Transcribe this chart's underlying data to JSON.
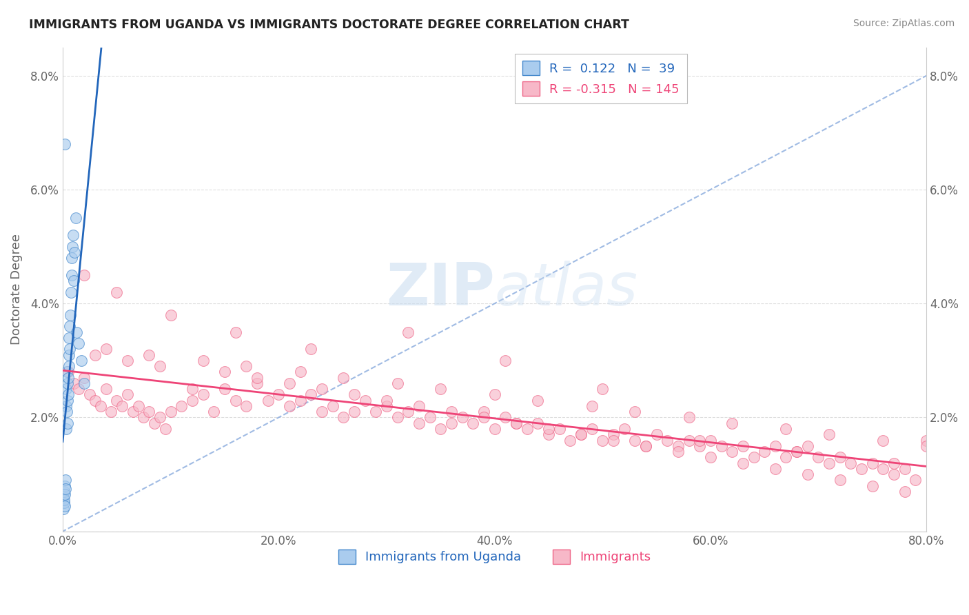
{
  "title": "IMMIGRANTS FROM UGANDA VS IMMIGRANTS DOCTORATE DEGREE CORRELATION CHART",
  "source": "Source: ZipAtlas.com",
  "ylabel_label": "Doctorate Degree",
  "x_tick_labels": [
    "0.0%",
    "20.0%",
    "40.0%",
    "60.0%",
    "80.0%"
  ],
  "x_tick_values": [
    0.0,
    20.0,
    40.0,
    60.0,
    80.0
  ],
  "y_tick_labels": [
    "",
    "2.0%",
    "4.0%",
    "6.0%",
    "8.0%"
  ],
  "y_tick_values": [
    0.0,
    2.0,
    4.0,
    6.0,
    8.0
  ],
  "xlim": [
    0.0,
    80.0
  ],
  "ylim": [
    0.0,
    8.5
  ],
  "R_blue": 0.122,
  "N_blue": 39,
  "R_pink": -0.315,
  "N_pink": 145,
  "legend_label_blue": "Immigrants from Uganda",
  "legend_label_pink": "Immigrants",
  "blue_fill_color": "#aaccee",
  "pink_fill_color": "#f7b8c8",
  "blue_edge_color": "#4488cc",
  "pink_edge_color": "#ee6688",
  "blue_line_color": "#2266bb",
  "pink_line_color": "#ee4477",
  "diag_line_color": "#88aadd",
  "watermark_color": "#ccddf0",
  "title_color": "#222222",
  "source_color": "#888888",
  "axis_color": "#666666",
  "grid_color": "#dddddd",
  "blue_scatter_x": [
    0.05,
    0.08,
    0.1,
    0.12,
    0.15,
    0.18,
    0.2,
    0.22,
    0.25,
    0.28,
    0.3,
    0.32,
    0.35,
    0.38,
    0.4,
    0.42,
    0.45,
    0.48,
    0.5,
    0.52,
    0.55,
    0.58,
    0.6,
    0.62,
    0.65,
    0.7,
    0.75,
    0.8,
    0.85,
    0.9,
    0.95,
    1.0,
    1.1,
    1.2,
    1.3,
    1.5,
    1.7,
    2.0,
    0.18
  ],
  "blue_scatter_y": [
    0.4,
    0.6,
    0.5,
    0.7,
    0.55,
    0.45,
    0.8,
    0.65,
    0.9,
    0.75,
    1.8,
    2.2,
    2.5,
    2.8,
    2.1,
    1.9,
    2.6,
    2.3,
    2.7,
    2.4,
    3.1,
    3.4,
    2.9,
    3.2,
    3.6,
    3.8,
    4.2,
    4.5,
    4.8,
    5.0,
    5.2,
    4.4,
    4.9,
    5.5,
    3.5,
    3.3,
    3.0,
    2.6,
    6.8
  ],
  "pink_scatter_x": [
    0.5,
    1.0,
    1.5,
    2.0,
    2.5,
    3.0,
    3.5,
    4.0,
    4.5,
    5.0,
    5.5,
    6.0,
    6.5,
    7.0,
    7.5,
    8.0,
    8.5,
    9.0,
    9.5,
    10.0,
    11.0,
    12.0,
    13.0,
    14.0,
    15.0,
    16.0,
    17.0,
    18.0,
    19.0,
    20.0,
    21.0,
    22.0,
    23.0,
    24.0,
    25.0,
    26.0,
    27.0,
    28.0,
    29.0,
    30.0,
    31.0,
    32.0,
    33.0,
    34.0,
    35.0,
    36.0,
    37.0,
    38.0,
    39.0,
    40.0,
    41.0,
    42.0,
    43.0,
    44.0,
    45.0,
    46.0,
    47.0,
    48.0,
    49.0,
    50.0,
    51.0,
    52.0,
    53.0,
    54.0,
    55.0,
    56.0,
    57.0,
    58.0,
    59.0,
    60.0,
    61.0,
    62.0,
    63.0,
    64.0,
    65.0,
    66.0,
    67.0,
    68.0,
    69.0,
    70.0,
    71.0,
    72.0,
    73.0,
    74.0,
    75.0,
    76.0,
    77.0,
    78.0,
    79.0,
    80.0,
    3.0,
    6.0,
    9.0,
    12.0,
    15.0,
    18.0,
    21.0,
    24.0,
    27.0,
    30.0,
    33.0,
    36.0,
    39.0,
    42.0,
    45.0,
    48.0,
    51.0,
    54.0,
    57.0,
    60.0,
    63.0,
    66.0,
    69.0,
    72.0,
    75.0,
    78.0,
    4.0,
    8.0,
    13.0,
    17.0,
    22.0,
    26.0,
    31.0,
    35.0,
    40.0,
    44.0,
    49.0,
    53.0,
    58.0,
    62.0,
    67.0,
    71.0,
    76.0,
    80.0,
    2.0,
    5.0,
    10.0,
    16.0,
    23.0,
    32.0,
    41.0,
    50.0,
    59.0,
    68.0,
    77.0
  ],
  "pink_scatter_y": [
    2.8,
    2.6,
    2.5,
    2.7,
    2.4,
    2.3,
    2.2,
    2.5,
    2.1,
    2.3,
    2.2,
    2.4,
    2.1,
    2.2,
    2.0,
    2.1,
    1.9,
    2.0,
    1.8,
    2.1,
    2.2,
    2.3,
    2.4,
    2.1,
    2.5,
    2.3,
    2.2,
    2.6,
    2.3,
    2.4,
    2.2,
    2.3,
    2.4,
    2.1,
    2.2,
    2.0,
    2.1,
    2.3,
    2.1,
    2.2,
    2.0,
    2.1,
    1.9,
    2.0,
    1.8,
    1.9,
    2.0,
    1.9,
    2.1,
    1.8,
    2.0,
    1.9,
    1.8,
    1.9,
    1.7,
    1.8,
    1.6,
    1.7,
    1.8,
    1.6,
    1.7,
    1.8,
    1.6,
    1.5,
    1.7,
    1.6,
    1.5,
    1.6,
    1.5,
    1.6,
    1.5,
    1.4,
    1.5,
    1.3,
    1.4,
    1.5,
    1.3,
    1.4,
    1.5,
    1.3,
    1.2,
    1.3,
    1.2,
    1.1,
    1.2,
    1.1,
    1.0,
    1.1,
    0.9,
    1.6,
    3.1,
    3.0,
    2.9,
    2.5,
    2.8,
    2.7,
    2.6,
    2.5,
    2.4,
    2.3,
    2.2,
    2.1,
    2.0,
    1.9,
    1.8,
    1.7,
    1.6,
    1.5,
    1.4,
    1.3,
    1.2,
    1.1,
    1.0,
    0.9,
    0.8,
    0.7,
    3.2,
    3.1,
    3.0,
    2.9,
    2.8,
    2.7,
    2.6,
    2.5,
    2.4,
    2.3,
    2.2,
    2.1,
    2.0,
    1.9,
    1.8,
    1.7,
    1.6,
    1.5,
    4.5,
    4.2,
    3.8,
    3.5,
    3.2,
    3.5,
    3.0,
    2.5,
    1.6,
    1.4,
    1.2
  ]
}
